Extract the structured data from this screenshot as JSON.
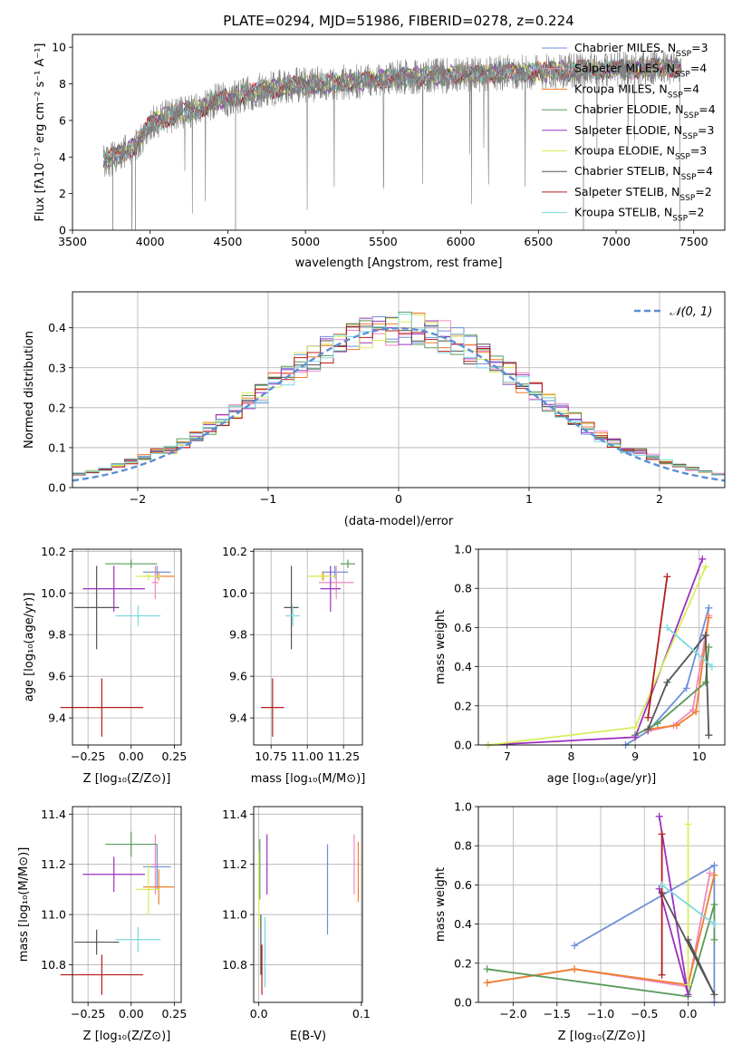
{
  "title": "PLATE=0294, MJD=51986, FIBERID=0278, z=0.224",
  "colors": {
    "Chabrier MILES": "#6e8fd8",
    "Salpeter MILES": "#f08abe",
    "Kroupa MILES": "#ee7f2d",
    "Chabrier ELODIE": "#5a9a5a",
    "Salpeter ELODIE": "#9b30c0",
    "Kroupa ELODIE": "#d7ee5a",
    "Chabrier STELIB": "#555555",
    "Salpeter STELIB": "#b71c1c",
    "Kroupa STELIB": "#7dd8e0",
    "data": "#808080",
    "normal": "#5b8dd6"
  },
  "chart_data": [
    {
      "type": "line",
      "id": "spectrum",
      "title": "PLATE=0294, MJD=51986, FIBERID=0278, z=0.224",
      "xlabel": "wavelength [Angstrom, rest frame]",
      "ylabel": "Flux [fλ10⁻¹⁷ erg cm⁻² s⁻¹ A⁻¹]",
      "xlim": [
        3500,
        7700
      ],
      "ylim": [
        0,
        10.7
      ],
      "xticks": [
        "3500",
        "4000",
        "4500",
        "5000",
        "5500",
        "6000",
        "6500",
        "7000",
        "7500"
      ],
      "yticks": [
        "0",
        "2",
        "4",
        "6",
        "8",
        "10"
      ],
      "x_range_data": [
        3700,
        7420
      ],
      "continuum": [
        [
          3700,
          3.8
        ],
        [
          3800,
          4.1
        ],
        [
          3900,
          4.6
        ],
        [
          4000,
          5.8
        ],
        [
          4100,
          6.2
        ],
        [
          4200,
          6.4
        ],
        [
          4300,
          6.6
        ],
        [
          4400,
          7.0
        ],
        [
          4500,
          7.2
        ],
        [
          4700,
          7.6
        ],
        [
          4900,
          7.9
        ],
        [
          5100,
          8.0
        ],
        [
          5300,
          8.1
        ],
        [
          5500,
          8.3
        ],
        [
          5700,
          8.4
        ],
        [
          6000,
          8.5
        ],
        [
          6300,
          8.6
        ],
        [
          6600,
          8.7
        ],
        [
          7000,
          8.8
        ],
        [
          7420,
          8.9
        ]
      ],
      "legend": [
        {
          "label": "Chabrier MILES, N",
          "sub": "SSP",
          "tail": "=3"
        },
        {
          "label": "Salpeter MILES, N",
          "sub": "SSP",
          "tail": "=4"
        },
        {
          "label": "Kroupa MILES, N",
          "sub": "SSP",
          "tail": "=4"
        },
        {
          "label": "Chabrier ELODIE, N",
          "sub": "SSP",
          "tail": "=4"
        },
        {
          "label": "Salpeter ELODIE, N",
          "sub": "SSP",
          "tail": "=3"
        },
        {
          "label": "Kroupa ELODIE, N",
          "sub": "SSP",
          "tail": "=3"
        },
        {
          "label": "Chabrier STELIB, N",
          "sub": "SSP",
          "tail": "=4"
        },
        {
          "label": "Salpeter STELIB, N",
          "sub": "SSP",
          "tail": "=2"
        },
        {
          "label": "Kroupa STELIB, N",
          "sub": "SSP",
          "tail": "=2"
        }
      ]
    },
    {
      "type": "area",
      "id": "residuals",
      "xlabel": "(data-model)/error",
      "ylabel": "Normed distribution",
      "xlim": [
        -2.5,
        2.5
      ],
      "ylim": [
        0,
        0.49
      ],
      "xticks": [
        "−2",
        "−1",
        "0",
        "1",
        "2"
      ],
      "yticks": [
        "0.0",
        "0.1",
        "0.2",
        "0.3",
        "0.4"
      ],
      "legend_label": "𝒩(0, 1)",
      "legend_position": "top-right",
      "grid": true,
      "bin_width": 0.1
    },
    {
      "type": "scatter",
      "id": "age-vs-Z",
      "xlabel": "Z [log₁₀(Z/Z⊙)]",
      "ylabel": "age  [log₁₀(age/yr)]",
      "xlim": [
        -0.34,
        0.29
      ],
      "ylim": [
        9.27,
        10.21
      ],
      "xticks": [
        "−0.25",
        "0.00",
        "0.25"
      ],
      "yticks": [
        "9.4",
        "9.6",
        "9.8",
        "10.0",
        "10.2"
      ],
      "points": [
        {
          "name": "Chabrier MILES",
          "x": 0.15,
          "y": 10.1,
          "xerr": 0.08,
          "yerr": 0.03
        },
        {
          "name": "Salpeter MILES",
          "x": 0.14,
          "y": 10.05,
          "xerr": 0.02,
          "yerr": 0.08
        },
        {
          "name": "Kroupa MILES",
          "x": 0.16,
          "y": 10.08,
          "xerr": 0.09,
          "yerr": 0.02
        },
        {
          "name": "Chabrier ELODIE",
          "x": 0.0,
          "y": 10.14,
          "xerr": 0.15,
          "yerr": 0.02
        },
        {
          "name": "Salpeter ELODIE",
          "x": -0.1,
          "y": 10.02,
          "xerr": 0.18,
          "yerr": 0.11
        },
        {
          "name": "Kroupa ELODIE",
          "x": 0.1,
          "y": 10.08,
          "xerr": 0.07,
          "yerr": 0.02
        },
        {
          "name": "Chabrier STELIB",
          "x": -0.2,
          "y": 9.93,
          "xerr": 0.13,
          "yerr": 0.2
        },
        {
          "name": "Salpeter STELIB",
          "x": -0.17,
          "y": 9.45,
          "xerr": 0.24,
          "yerr": 0.14
        },
        {
          "name": "Kroupa STELIB",
          "x": 0.04,
          "y": 9.89,
          "xerr": 0.13,
          "yerr": 0.05
        }
      ]
    },
    {
      "type": "scatter",
      "id": "age-vs-mass",
      "xlabel": "mass [log₁₀(M/M⊙)]",
      "ylabel": "",
      "xlim": [
        10.63,
        11.38
      ],
      "ylim": [
        9.27,
        10.21
      ],
      "xticks": [
        "10.75",
        "11.00",
        "11.25"
      ],
      "yticks": [
        "9.4",
        "9.6",
        "9.8",
        "10.0",
        "10.2"
      ],
      "points": [
        {
          "name": "Chabrier MILES",
          "x": 11.19,
          "y": 10.1,
          "xerr": 0.09,
          "yerr": 0.03
        },
        {
          "name": "Salpeter MILES",
          "x": 11.2,
          "y": 10.05,
          "xerr": 0.12,
          "yerr": 0.08
        },
        {
          "name": "Kroupa MILES",
          "x": 11.11,
          "y": 10.08,
          "xerr": 0.07,
          "yerr": 0.02
        },
        {
          "name": "Chabrier ELODIE",
          "x": 11.28,
          "y": 10.14,
          "xerr": 0.05,
          "yerr": 0.02
        },
        {
          "name": "Salpeter ELODIE",
          "x": 11.16,
          "y": 10.02,
          "xerr": 0.07,
          "yerr": 0.11
        },
        {
          "name": "Kroupa ELODIE",
          "x": 11.1,
          "y": 10.08,
          "xerr": 0.1,
          "yerr": 0.02
        },
        {
          "name": "Chabrier STELIB",
          "x": 10.89,
          "y": 9.93,
          "xerr": 0.05,
          "yerr": 0.2
        },
        {
          "name": "Salpeter STELIB",
          "x": 10.76,
          "y": 9.45,
          "xerr": 0.08,
          "yerr": 0.14
        },
        {
          "name": "Kroupa STELIB",
          "x": 10.9,
          "y": 9.89,
          "xerr": 0.05,
          "yerr": 0.05
        }
      ]
    },
    {
      "type": "line",
      "id": "mass-weight-vs-age",
      "xlabel": "age  [log₁₀(age/yr)]",
      "ylabel": "mass weight",
      "xlim": [
        6.55,
        10.4
      ],
      "ylim": [
        0,
        1.0
      ],
      "xticks": [
        "7",
        "8",
        "9",
        "10"
      ],
      "yticks": [
        "0.0",
        "0.2",
        "0.4",
        "0.6",
        "0.8",
        "1.0"
      ],
      "grid": true,
      "series": [
        {
          "name": "Chabrier MILES",
          "points": [
            [
              8.85,
              0.0
            ],
            [
              9.2,
              0.07
            ],
            [
              9.8,
              0.29
            ],
            [
              10.15,
              0.7
            ]
          ]
        },
        {
          "name": "Salpeter MILES",
          "points": [
            [
              9.2,
              0.07
            ],
            [
              9.6,
              0.1
            ],
            [
              9.9,
              0.18
            ],
            [
              10.15,
              0.66
            ]
          ]
        },
        {
          "name": "Kroupa MILES",
          "points": [
            [
              9.2,
              0.08
            ],
            [
              9.65,
              0.1
            ],
            [
              9.95,
              0.17
            ],
            [
              10.15,
              0.65
            ]
          ]
        },
        {
          "name": "Chabrier ELODIE",
          "points": [
            [
              9.0,
              0.05
            ],
            [
              9.35,
              0.11
            ],
            [
              10.1,
              0.32
            ],
            [
              10.15,
              0.5
            ]
          ]
        },
        {
          "name": "Salpeter ELODIE",
          "points": [
            [
              6.7,
              0.0
            ],
            [
              9.0,
              0.04
            ],
            [
              10.05,
              0.95
            ]
          ]
        },
        {
          "name": "Kroupa ELODIE",
          "points": [
            [
              6.7,
              0.0
            ],
            [
              9.0,
              0.09
            ],
            [
              10.1,
              0.91
            ]
          ]
        },
        {
          "name": "Chabrier STELIB",
          "points": [
            [
              9.2,
              0.08
            ],
            [
              9.5,
              0.32
            ],
            [
              10.1,
              0.56
            ],
            [
              10.15,
              0.05
            ]
          ]
        },
        {
          "name": "Salpeter STELIB",
          "points": [
            [
              9.2,
              0.14
            ],
            [
              9.5,
              0.86
            ]
          ]
        },
        {
          "name": "Kroupa STELIB",
          "points": [
            [
              9.5,
              0.6
            ],
            [
              10.2,
              0.4
            ]
          ]
        }
      ]
    },
    {
      "type": "scatter",
      "id": "mass-vs-Z",
      "xlabel": "Z [log₁₀(Z/Z⊙)]",
      "ylabel": "mass [log₁₀(M/M⊙)]",
      "xlim": [
        -0.34,
        0.29
      ],
      "ylim": [
        10.65,
        11.43
      ],
      "xticks": [
        "−0.25",
        "0.00",
        "0.25"
      ],
      "yticks": [
        "10.8",
        "11.0",
        "11.2",
        "11.4"
      ],
      "points": [
        {
          "name": "Chabrier MILES",
          "x": 0.15,
          "y": 11.19,
          "xerr": 0.08,
          "yerr": 0.09
        },
        {
          "name": "Salpeter MILES",
          "x": 0.14,
          "y": 11.2,
          "xerr": 0.02,
          "yerr": 0.12
        },
        {
          "name": "Kroupa MILES",
          "x": 0.16,
          "y": 11.11,
          "xerr": 0.09,
          "yerr": 0.07
        },
        {
          "name": "Chabrier ELODIE",
          "x": 0.0,
          "y": 11.28,
          "xerr": 0.15,
          "yerr": 0.05
        },
        {
          "name": "Salpeter ELODIE",
          "x": -0.1,
          "y": 11.16,
          "xerr": 0.18,
          "yerr": 0.07
        },
        {
          "name": "Kroupa ELODIE",
          "x": 0.1,
          "y": 11.1,
          "xerr": 0.07,
          "yerr": 0.1
        },
        {
          "name": "Chabrier STELIB",
          "x": -0.2,
          "y": 10.89,
          "xerr": 0.13,
          "yerr": 0.05
        },
        {
          "name": "Salpeter STELIB",
          "x": -0.17,
          "y": 10.76,
          "xerr": 0.24,
          "yerr": 0.08
        },
        {
          "name": "Kroupa STELIB",
          "x": 0.04,
          "y": 10.9,
          "xerr": 0.13,
          "yerr": 0.05
        }
      ]
    },
    {
      "type": "scatter",
      "id": "mass-vs-EBV",
      "xlabel": "E(B-V)",
      "ylabel": "",
      "xlim": [
        -0.005,
        0.101
      ],
      "ylim": [
        10.65,
        11.43
      ],
      "xticks": [
        "0.0",
        "0.1"
      ],
      "yticks": [
        "10.8",
        "11.0",
        "11.2",
        "11.4"
      ],
      "points": [
        {
          "name": "Chabrier MILES",
          "x": 0.067,
          "y": 11.1,
          "yerr": 0.18
        },
        {
          "name": "Salpeter MILES",
          "x": 0.093,
          "y": 11.2,
          "yerr": 0.12
        },
        {
          "name": "Kroupa MILES",
          "x": 0.097,
          "y": 11.17,
          "yerr": 0.12
        },
        {
          "name": "Chabrier ELODIE",
          "x": 0.001,
          "y": 11.18,
          "yerr": 0.12
        },
        {
          "name": "Salpeter ELODIE",
          "x": 0.008,
          "y": 11.2,
          "yerr": 0.12
        },
        {
          "name": "Kroupa ELODIE",
          "x": 0.0,
          "y": 11.1,
          "yerr": 0.15
        },
        {
          "name": "Chabrier STELIB",
          "x": 0.002,
          "y": 10.88,
          "yerr": 0.12
        },
        {
          "name": "Salpeter STELIB",
          "x": 0.003,
          "y": 10.78,
          "yerr": 0.1
        },
        {
          "name": "Kroupa STELIB",
          "x": 0.006,
          "y": 10.85,
          "yerr": 0.14
        }
      ]
    },
    {
      "type": "line",
      "id": "mass-weight-vs-Z",
      "xlabel": "Z [log₁₀(Z/Z⊙)]",
      "ylabel": "mass weight",
      "xlim": [
        -2.4,
        0.42
      ],
      "ylim": [
        0,
        1.0
      ],
      "xticks": [
        "−2.0",
        "−1.5",
        "−1.0",
        "−0.5",
        "0.0"
      ],
      "yticks": [
        "0.0",
        "0.2",
        "0.4",
        "0.6",
        "0.8",
        "1.0"
      ],
      "grid": true,
      "series": [
        {
          "name": "Chabrier MILES",
          "points": [
            [
              -1.3,
              0.29
            ],
            [
              0.3,
              0.7
            ],
            [
              0.3,
              0.0
            ]
          ]
        },
        {
          "name": "Salpeter MILES",
          "points": [
            [
              -2.3,
              0.1
            ],
            [
              -1.3,
              0.17
            ],
            [
              0.0,
              0.08
            ],
            [
              0.25,
              0.66
            ]
          ]
        },
        {
          "name": "Kroupa MILES",
          "points": [
            [
              -2.3,
              0.1
            ],
            [
              -1.3,
              0.17
            ],
            [
              0.0,
              0.09
            ],
            [
              0.3,
              0.65
            ]
          ]
        },
        {
          "name": "Chabrier ELODIE",
          "points": [
            [
              -2.3,
              0.17
            ],
            [
              0.0,
              0.03
            ],
            [
              0.3,
              0.5
            ],
            [
              0.3,
              0.32
            ]
          ]
        },
        {
          "name": "Salpeter ELODIE",
          "points": [
            [
              -0.33,
              0.95
            ],
            [
              0.0,
              0.04
            ],
            [
              -0.33,
              0.58
            ]
          ]
        },
        {
          "name": "Kroupa ELODIE",
          "points": [
            [
              0.0,
              0.91
            ],
            [
              0.0,
              0.09
            ]
          ]
        },
        {
          "name": "Chabrier STELIB",
          "points": [
            [
              -0.3,
              0.56
            ],
            [
              0.3,
              0.04
            ],
            [
              0.0,
              0.32
            ]
          ]
        },
        {
          "name": "Salpeter STELIB",
          "points": [
            [
              -0.3,
              0.86
            ],
            [
              -0.3,
              0.14
            ]
          ]
        },
        {
          "name": "Kroupa STELIB",
          "points": [
            [
              -0.3,
              0.6
            ],
            [
              0.3,
              0.4
            ]
          ]
        }
      ]
    }
  ]
}
